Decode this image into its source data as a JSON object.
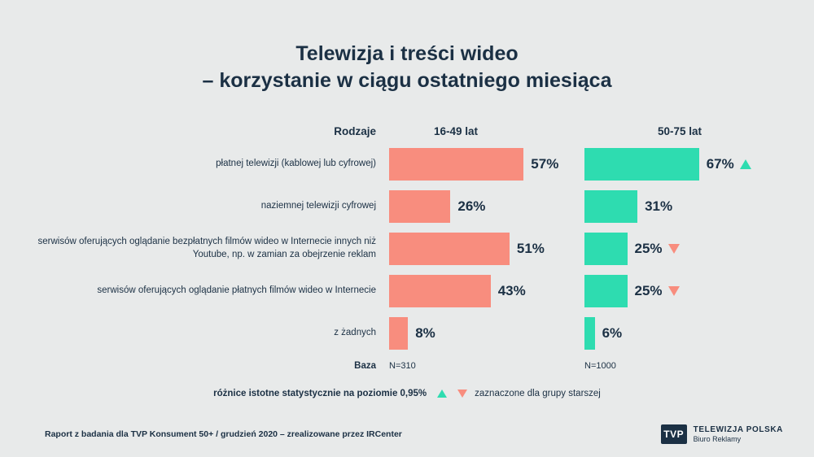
{
  "title": {
    "line1": "Telewizja i treści wideo",
    "line2": "– korzystanie w ciągu ostatniego miesiąca"
  },
  "colors": {
    "background": "#e8eaea",
    "navy": "#1b3044",
    "salmon": "#f88d7e",
    "teal": "#2edcb0"
  },
  "headers": {
    "category_column": "Rodzaje"
  },
  "labels": {
    "baza": "Baza"
  },
  "chart_data": {
    "type": "bar",
    "orientation": "horizontal",
    "value_unit": "%",
    "xlim": [
      0,
      100
    ],
    "categories": [
      "płatnej telewizji (kablowej lub cyfrowej)",
      "naziemnej telewizji cyfrowej",
      "serwisów oferujących oglądanie bezpłatnych filmów wideo w Internecie innych niż Youtube, np. w zamian za obejrzenie reklam",
      "serwisów oferujących oglądanie płatnych filmów wideo w Internecie",
      "z żadnych"
    ],
    "series": [
      {
        "name": "16-49 lat",
        "color": "#f88d7e",
        "base_label": "N=310",
        "values": [
          57,
          26,
          51,
          43,
          8
        ]
      },
      {
        "name": "50-75 lat",
        "color": "#2edcb0",
        "base_label": "N=1000",
        "values": [
          67,
          31,
          25,
          25,
          6
        ]
      }
    ],
    "significance_markers_older_group": [
      "up",
      null,
      "down",
      "down",
      null
    ]
  },
  "legend": {
    "text1": "różnice istotne statystycznie na poziomie 0,95%",
    "text2": "zaznaczone dla grupy starszej"
  },
  "footer": {
    "source": "Raport z badania dla TVP Konsument 50+ / grudzień 2020 – zrealizowane przez IRCenter",
    "logo_text": "TVP",
    "brand_line1": "TELEWIZJA POLSKA",
    "brand_line2": "Biuro Reklamy"
  }
}
